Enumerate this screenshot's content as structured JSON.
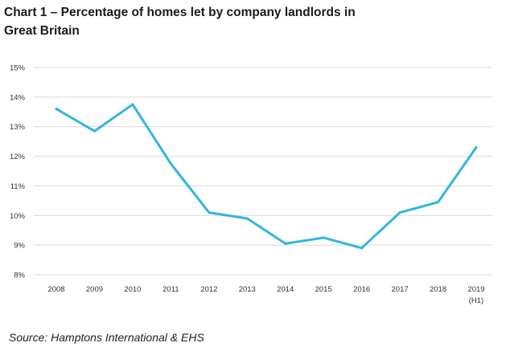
{
  "chart_data": {
    "type": "line",
    "title_line1": "Chart 1 – Percentage of homes let by company landlords in",
    "title_line2": "Great Britain",
    "categories": [
      "2008",
      "2009",
      "2010",
      "2011",
      "2012",
      "2013",
      "2014",
      "2015",
      "2016",
      "2017",
      "2018",
      "2019"
    ],
    "category_sublabels": {
      "2019": "(H1)"
    },
    "series": [
      {
        "name": "Company landlords",
        "color": "#33b5e0",
        "values": [
          13.6,
          12.85,
          13.75,
          11.75,
          10.1,
          9.9,
          9.05,
          9.25,
          8.9,
          10.1,
          10.45,
          12.3
        ]
      }
    ],
    "yticks": [
      8,
      9,
      10,
      11,
      12,
      13,
      14,
      15
    ],
    "ytick_labels": [
      "8%",
      "9%",
      "10%",
      "11%",
      "12%",
      "13%",
      "14%",
      "15%"
    ],
    "ylim": [
      8,
      15
    ],
    "xlabel": "",
    "ylabel": "",
    "grid": true
  },
  "source": "Source: Hamptons International & EHS"
}
